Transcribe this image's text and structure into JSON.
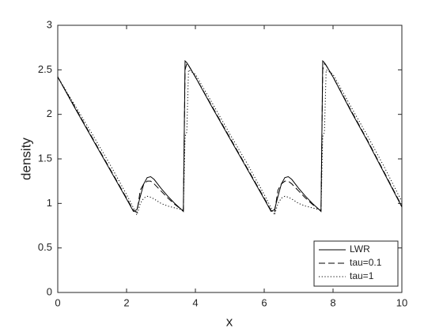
{
  "chart_data": {
    "type": "line",
    "xlabel": "x",
    "ylabel": "density",
    "x": [
      0,
      0.5,
      1,
      1.5,
      2,
      2.2,
      2.3,
      2.4,
      2.5,
      2.6,
      2.7,
      2.8,
      3.0,
      3.2,
      3.4,
      3.6,
      3.65,
      3.7,
      3.75,
      3.8,
      4,
      4.5,
      5,
      5.5,
      6,
      6.2,
      6.3,
      6.4,
      6.5,
      6.6,
      6.7,
      6.8,
      7.0,
      7.2,
      7.4,
      7.6,
      7.65,
      7.7,
      7.75,
      7.8,
      8,
      8.5,
      9,
      9.5,
      10
    ],
    "series": [
      {
        "name": "LWR",
        "color": "#000000",
        "linestyle": "solid",
        "values": [
          2.42,
          2.07,
          1.73,
          1.39,
          1.05,
          0.91,
          0.93,
          1.08,
          1.22,
          1.29,
          1.3,
          1.27,
          1.17,
          1.08,
          1.0,
          0.93,
          0.91,
          2.6,
          2.58,
          2.55,
          2.42,
          2.07,
          1.73,
          1.39,
          1.05,
          0.91,
          0.93,
          1.08,
          1.22,
          1.29,
          1.3,
          1.27,
          1.17,
          1.08,
          1.0,
          0.93,
          0.91,
          2.6,
          2.58,
          2.55,
          2.42,
          2.05,
          1.7,
          1.33,
          0.96
        ]
      },
      {
        "name": "tau=0.1",
        "color": "#000000",
        "linestyle": "dashed",
        "values": [
          2.42,
          2.08,
          1.74,
          1.4,
          1.06,
          0.92,
          0.9,
          1.15,
          1.22,
          1.25,
          1.25,
          1.22,
          1.14,
          1.06,
          0.99,
          0.93,
          0.92,
          2.5,
          2.57,
          2.55,
          2.42,
          2.08,
          1.74,
          1.4,
          1.06,
          0.92,
          0.9,
          1.15,
          1.22,
          1.25,
          1.25,
          1.22,
          1.14,
          1.06,
          0.99,
          0.93,
          0.92,
          2.5,
          2.57,
          2.55,
          2.42,
          2.06,
          1.71,
          1.34,
          0.97
        ]
      },
      {
        "name": "tau=1",
        "color": "#000000",
        "linestyle": "dotted",
        "values": [
          2.42,
          2.1,
          1.78,
          1.45,
          1.1,
          0.95,
          0.87,
          1.0,
          1.06,
          1.08,
          1.07,
          1.05,
          1.0,
          0.97,
          0.95,
          0.93,
          0.92,
          1.75,
          1.8,
          2.5,
          2.45,
          2.12,
          1.78,
          1.45,
          1.1,
          0.95,
          0.87,
          1.0,
          1.06,
          1.08,
          1.07,
          1.05,
          1.0,
          0.97,
          0.95,
          0.93,
          0.92,
          1.75,
          1.8,
          2.5,
          2.45,
          2.1,
          1.76,
          1.4,
          1.02
        ]
      }
    ],
    "xlim": [
      0,
      10
    ],
    "xticks": [
      0,
      2,
      4,
      6,
      8,
      10
    ],
    "ylim": [
      0,
      3
    ],
    "yticks": [
      0,
      0.5,
      1,
      1.5,
      2,
      2.5,
      3
    ],
    "legend": "lower right",
    "grid": false
  }
}
